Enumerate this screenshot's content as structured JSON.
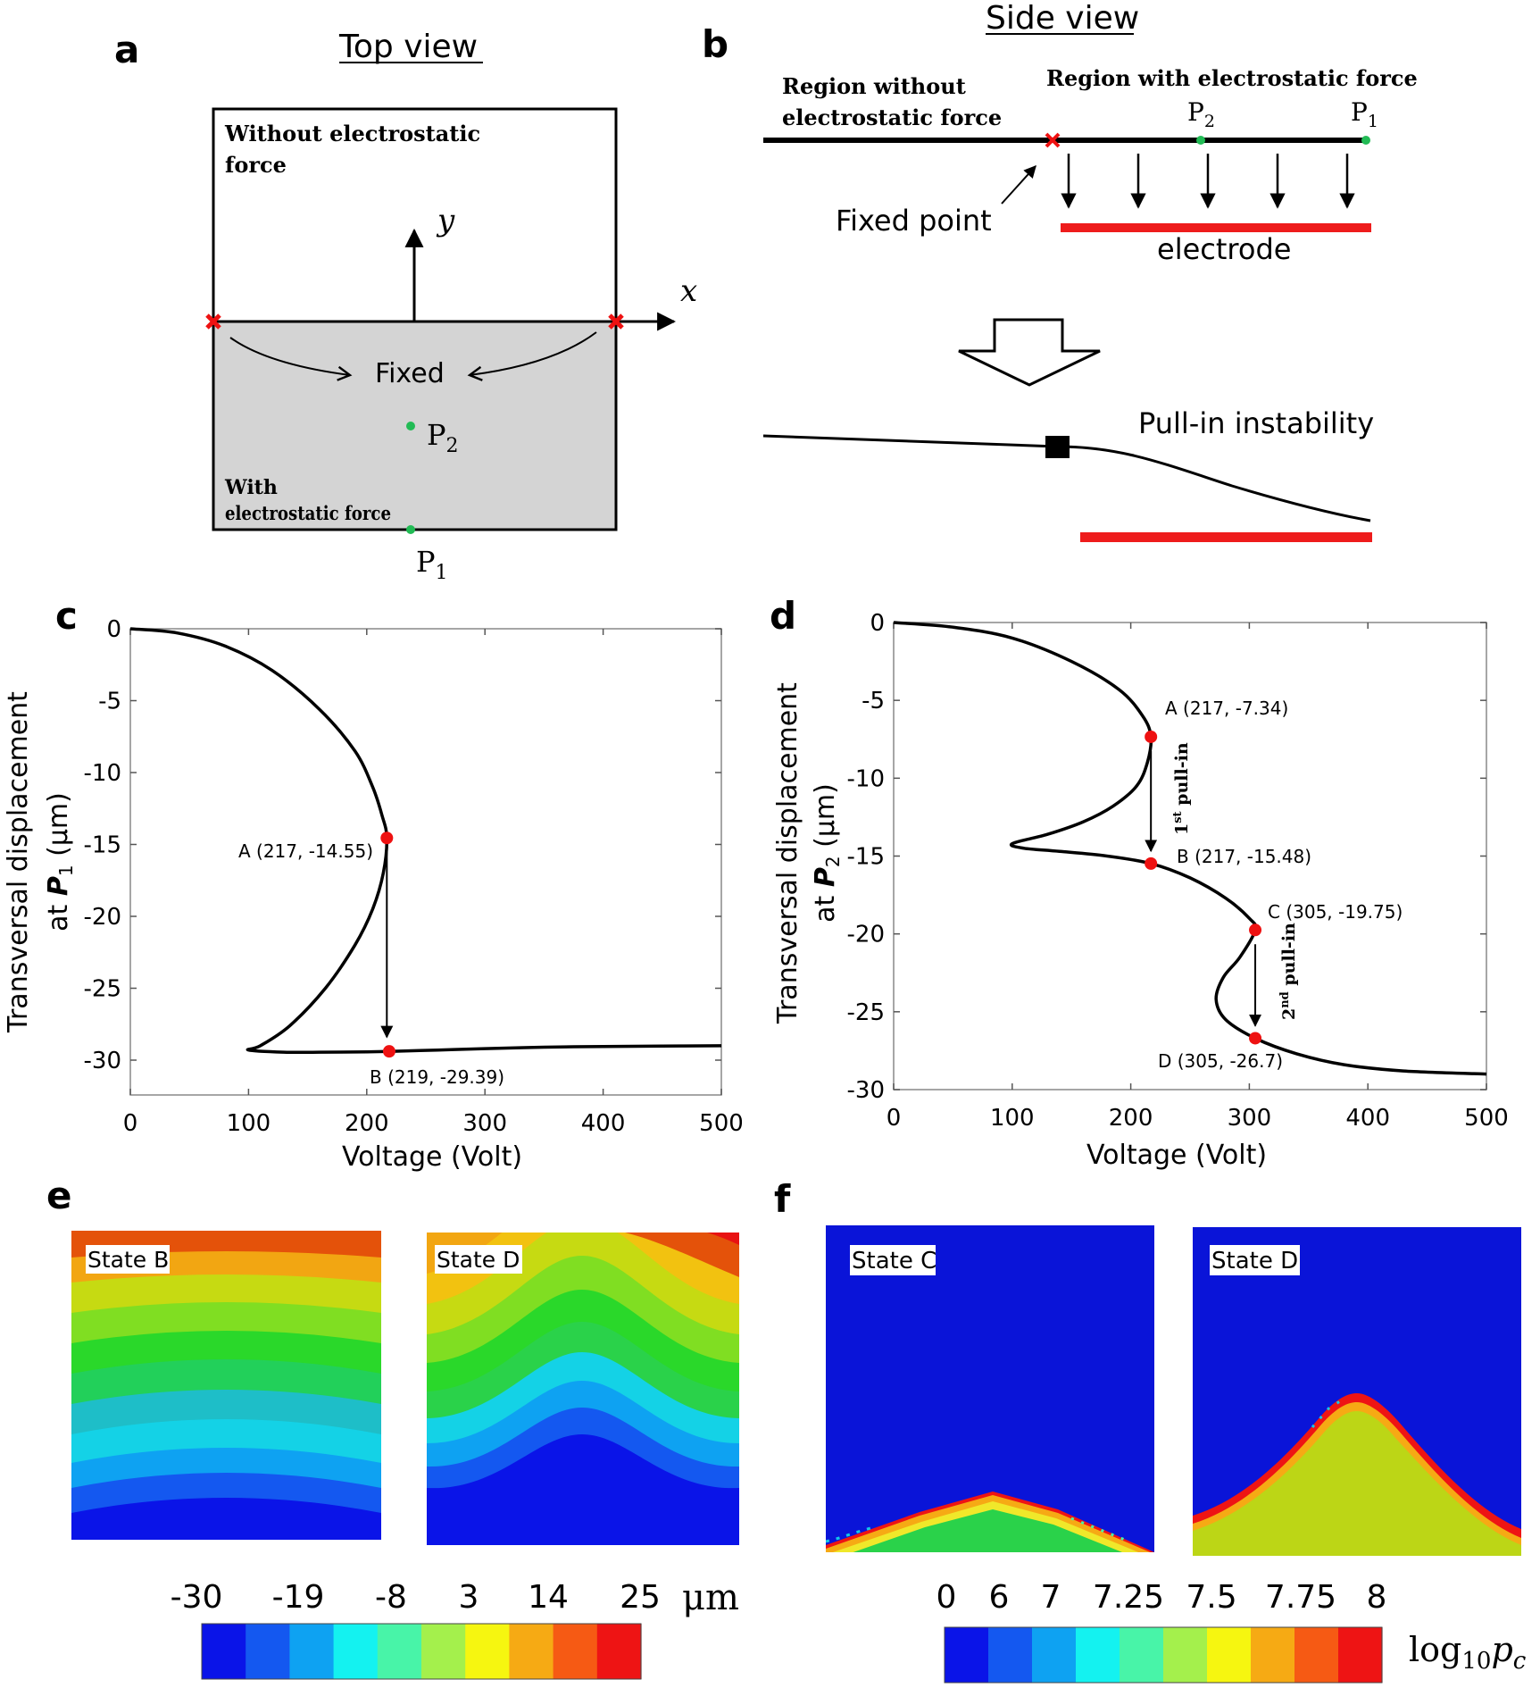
{
  "panels": {
    "a": {
      "letter": "a",
      "heading": "Top view",
      "label_without": "Without electrostatic",
      "label_without_2": "force",
      "axis_y": "y",
      "axis_x": "x",
      "label_fixed": "Fixed",
      "label_p2": "P",
      "label_p2_sub": "2",
      "label_with": "With",
      "label_with_2": "electrostatic force",
      "label_p1": "P",
      "label_p1_sub": "1"
    },
    "b": {
      "letter": "b",
      "heading": "Side view",
      "region_without_1": "Region without",
      "region_without_2": "electrostatic force",
      "region_with": "Region with electrostatic force",
      "p2": "P",
      "p2_sub": "2",
      "p1": "P",
      "p1_sub": "1",
      "fixed_point": "Fixed point",
      "electrode": "electrode",
      "pull_in": "Pull-in instability"
    },
    "c": {
      "letter": "c",
      "ylabel_1": "Transversal displacement",
      "ylabel_2_a": "at ",
      "ylabel_2_b": "P",
      "ylabel_2_sub": "1",
      "ylabel_2_c": " (μm)",
      "xlabel": "Voltage (Volt)",
      "point_a": "A (217, -14.55)",
      "point_b": "B (219, -29.39)"
    },
    "d": {
      "letter": "d",
      "ylabel_1": "Transversal displacement",
      "ylabel_2_a": "at ",
      "ylabel_2_b": "P",
      "ylabel_2_sub": "2",
      "ylabel_2_c": " (μm)",
      "xlabel": "Voltage (Volt)",
      "point_a": "A (217, -7.34)",
      "point_b": "B (217, -15.48)",
      "point_c": "C (305, -19.75)",
      "point_d": "D (305, -26.7)",
      "pullin_1_a": "1",
      "pullin_1_sup": "st",
      "pullin_1_b": " pull-in",
      "pullin_2_a": "2",
      "pullin_2_sup": "nd",
      "pullin_2_b": " pull-in"
    },
    "e": {
      "letter": "e",
      "state_left": "State B",
      "state_right": "State D",
      "unit": "μm",
      "ticks": [
        "-30",
        "-19",
        "-8",
        "3",
        "14",
        "25"
      ]
    },
    "f": {
      "letter": "f",
      "state_left": "State C",
      "state_right": "State D",
      "unit": "log",
      "unit_sub": "10",
      "unit_var": "p",
      "unit_var_sub": "c",
      "ticks": [
        "0",
        "6",
        "7",
        "7.25",
        "7.5",
        "7.75",
        "8"
      ]
    }
  },
  "colors": {
    "electrode": "#ee1c1c",
    "marker_point": "#ee1111",
    "green_point": "#22bb55",
    "fixed_region": "#d4d4d4",
    "jet": [
      "#0a14e8",
      "#1458f0",
      "#0ea2f2",
      "#14f2f0",
      "#48f4a8",
      "#a4f04c",
      "#f6f610",
      "#f6aa14",
      "#f65a14",
      "#ee1414"
    ],
    "panel_f_jet": [
      "#0a14e8",
      "#1458f0",
      "#0ea2f2",
      "#14f2f0",
      "#48f4a8",
      "#a4f04c",
      "#f6f610",
      "#f6aa14",
      "#f65a14",
      "#ee1414"
    ],
    "panel_f_blue": "#0a14d8",
    "panel_f_fill_c": "#2ad24a",
    "panel_f_fill_d": "#bcd616"
  },
  "chart_data": [
    {
      "panel": "c",
      "type": "line",
      "title": "",
      "xlabel": "Voltage (Volt)",
      "ylabel": "Transversal displacement at P1 (μm)",
      "xlim": [
        0,
        500
      ],
      "ylim": [
        -32,
        0
      ],
      "xticks": [
        "0",
        "100",
        "200",
        "300",
        "400",
        "500"
      ],
      "yticks": [
        "0",
        "-5",
        "-10",
        "-15",
        "-20",
        "-25",
        "-30"
      ],
      "x": [
        0,
        40,
        80,
        120,
        160,
        190,
        205,
        213,
        217,
        214,
        205,
        190,
        165,
        135,
        110,
        100,
        130,
        160,
        200,
        219,
        260,
        300,
        350,
        400,
        450,
        500
      ],
      "y": [
        0,
        -0.3,
        -1.2,
        -2.9,
        -5.6,
        -8.5,
        -11.0,
        -13.0,
        -14.55,
        -17.0,
        -19.5,
        -22.0,
        -25.0,
        -27.6,
        -29.0,
        -29.3,
        -29.45,
        -29.45,
        -29.42,
        -29.39,
        -29.3,
        -29.2,
        -29.1,
        -29.05,
        -29.02,
        -29.0
      ],
      "annotations": [
        {
          "label": "A (217, -14.55)",
          "x": 217,
          "y": -14.55
        },
        {
          "label": "B (219, -29.39)",
          "x": 219,
          "y": -29.39
        }
      ]
    },
    {
      "panel": "d",
      "type": "line",
      "title": "",
      "xlabel": "Voltage (Volt)",
      "ylabel": "Transversal displacement at P2 (μm)",
      "xlim": [
        0,
        500
      ],
      "ylim": [
        -30,
        0
      ],
      "xticks": [
        "0",
        "100",
        "200",
        "300",
        "400",
        "500"
      ],
      "yticks": [
        "0",
        "-5",
        "-10",
        "-15",
        "-20",
        "-25",
        "-30"
      ],
      "x": [
        0,
        50,
        100,
        150,
        190,
        210,
        217,
        214,
        205,
        185,
        160,
        130,
        100,
        110,
        140,
        180,
        217,
        250,
        280,
        300,
        305,
        292,
        278,
        272,
        280,
        305,
        340,
        380,
        430,
        500
      ],
      "y": [
        0,
        -0.3,
        -1.0,
        -2.5,
        -4.3,
        -6.0,
        -7.34,
        -9.0,
        -10.5,
        -11.8,
        -12.8,
        -13.6,
        -14.2,
        -14.5,
        -14.7,
        -15.0,
        -15.48,
        -16.4,
        -17.7,
        -19.0,
        -19.75,
        -21.5,
        -22.8,
        -24.2,
        -25.5,
        -26.7,
        -27.7,
        -28.4,
        -28.8,
        -29.0
      ],
      "annotations": [
        {
          "label": "A (217, -7.34)",
          "x": 217,
          "y": -7.34
        },
        {
          "label": "B (217, -15.48)",
          "x": 217,
          "y": -15.48
        },
        {
          "label": "C (305, -19.75)",
          "x": 305,
          "y": -19.75
        },
        {
          "label": "D (305, -26.7)",
          "x": 305,
          "y": -26.7
        }
      ]
    }
  ]
}
